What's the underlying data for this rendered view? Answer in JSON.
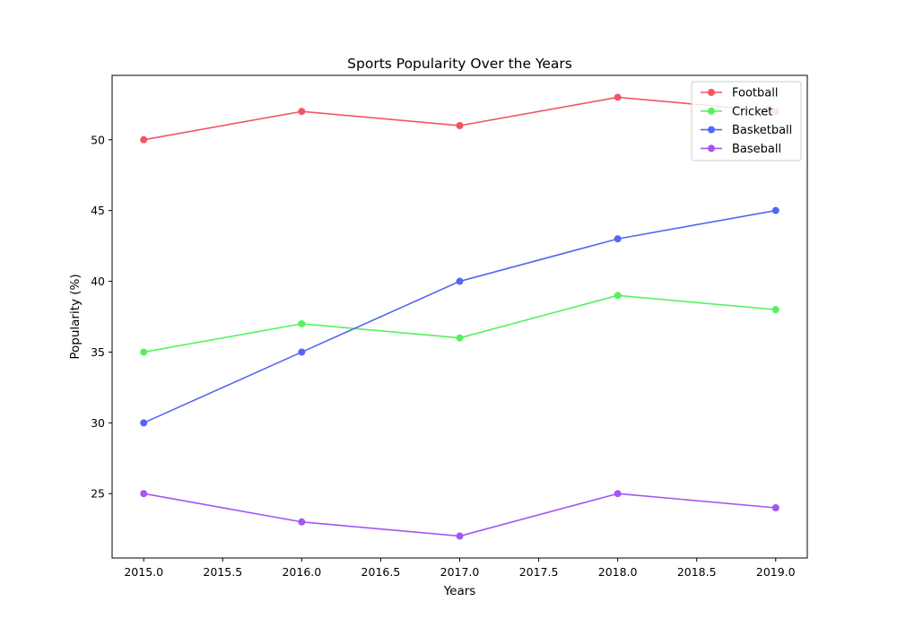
{
  "chart_data": {
    "type": "line",
    "title": "Sports Popularity Over the Years",
    "xlabel": "Years",
    "ylabel": "Popularity (%)",
    "x": [
      2015,
      2016,
      2017,
      2018,
      2019
    ],
    "xlim": [
      2014.8,
      2019.2
    ],
    "ylim": [
      20.45,
      54.55
    ],
    "xticks": [
      "2015.0",
      "2015.5",
      "2016.0",
      "2016.5",
      "2017.0",
      "2017.5",
      "2018.0",
      "2018.5",
      "2019.0"
    ],
    "yticks": [
      "25",
      "30",
      "35",
      "40",
      "45",
      "50"
    ],
    "grid": false,
    "legend_position": "top-right",
    "markers": true,
    "series": [
      {
        "name": "Football",
        "color": "#f25566",
        "values": [
          50,
          52,
          51,
          53,
          52
        ]
      },
      {
        "name": "Cricket",
        "color": "#55f25e",
        "values": [
          35,
          37,
          36,
          39,
          38
        ]
      },
      {
        "name": "Basketball",
        "color": "#5566f2",
        "values": [
          30,
          35,
          40,
          43,
          45
        ]
      },
      {
        "name": "Baseball",
        "color": "#a455f2",
        "values": [
          25,
          23,
          22,
          25,
          24
        ]
      }
    ]
  }
}
